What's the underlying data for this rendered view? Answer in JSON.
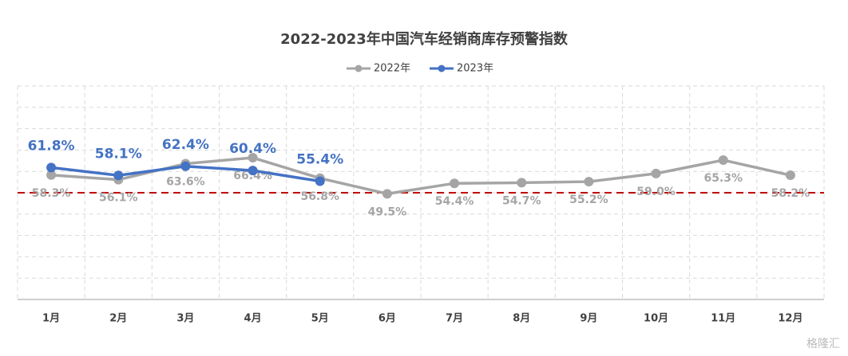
{
  "chart_data": {
    "type": "line",
    "title": "2022-2023年中国汽车经销商库存预警指数",
    "categories": [
      "1月",
      "2月",
      "3月",
      "4月",
      "5月",
      "6月",
      "7月",
      "8月",
      "9月",
      "10月",
      "11月",
      "12月"
    ],
    "series": [
      {
        "name": "2022年",
        "color": "#a5a5a5",
        "values": [
          58.3,
          56.1,
          63.6,
          66.4,
          56.8,
          49.5,
          54.4,
          54.7,
          55.2,
          59.0,
          65.3,
          58.2
        ],
        "value_labels": [
          "58.3%",
          "56.1%",
          "63.6%",
          "66.4%",
          "56.8%",
          "49.5%",
          "54.4%",
          "54.7%",
          "55.2%",
          "59.0%",
          "65.3%",
          "58.2%"
        ]
      },
      {
        "name": "2023年",
        "color": "#4472c4",
        "values": [
          61.8,
          58.1,
          62.4,
          60.4,
          55.4,
          null,
          null,
          null,
          null,
          null,
          null,
          null
        ],
        "value_labels": [
          "61.8%",
          "58.1%",
          "62.4%",
          "60.4%",
          "55.4%",
          null,
          null,
          null,
          null,
          null,
          null,
          null
        ]
      }
    ],
    "ylim": [
      0,
      100
    ],
    "yticks": [
      0,
      10,
      20,
      30,
      40,
      50,
      60,
      70,
      80,
      90,
      100
    ],
    "grid": true,
    "reference_line": {
      "value": 50,
      "color": "#c00000"
    },
    "legend": "top",
    "watermark": "格隆汇"
  }
}
